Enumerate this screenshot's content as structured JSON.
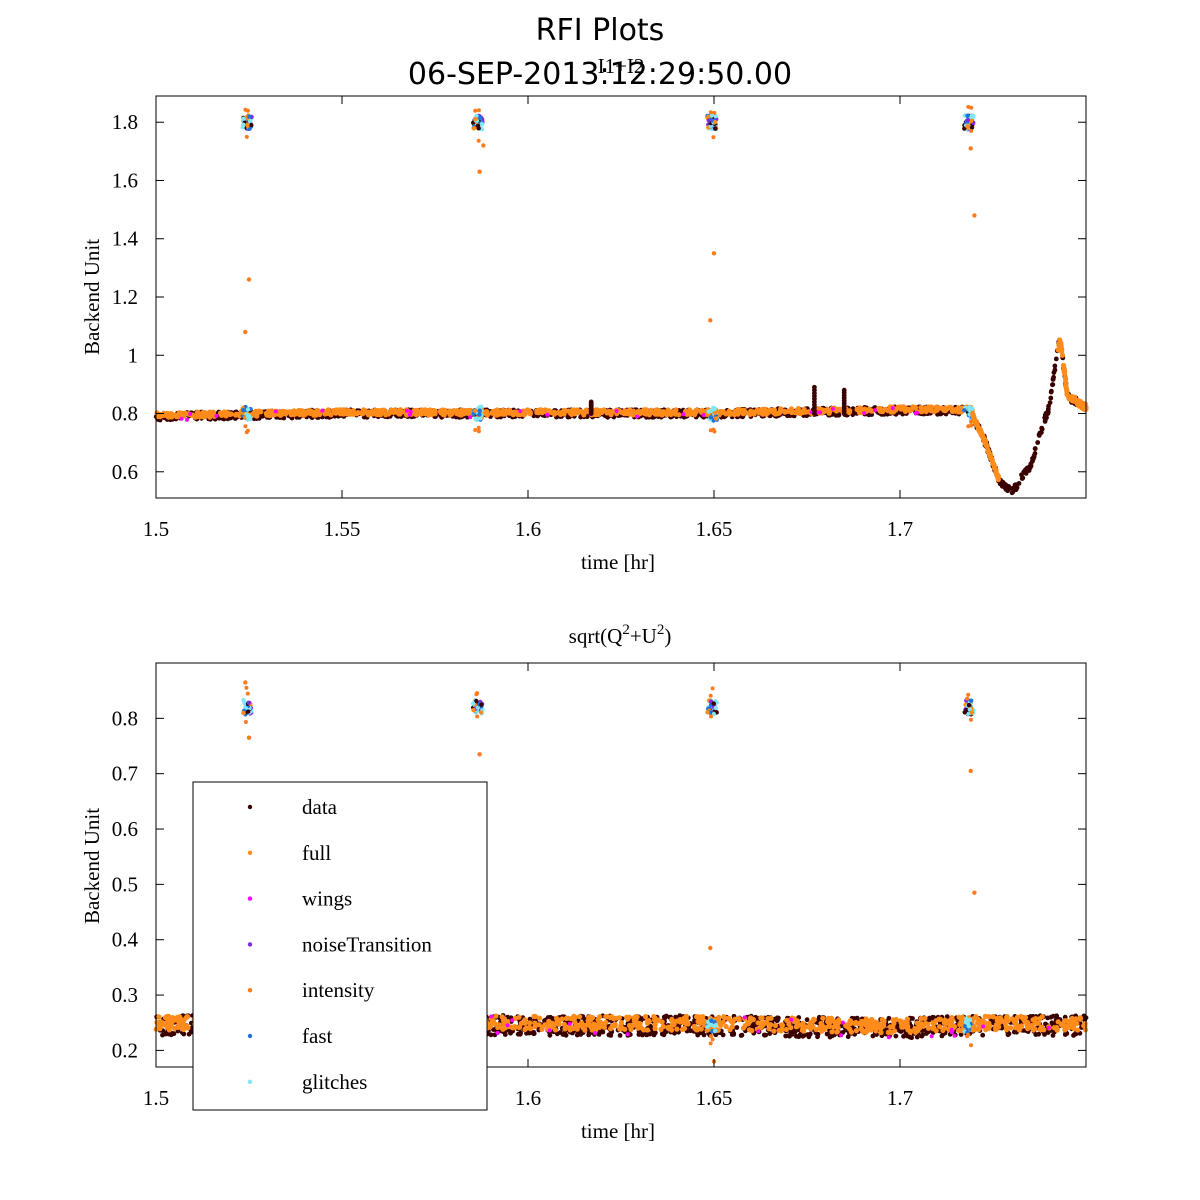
{
  "figure": {
    "title_line1": "RFI Plots",
    "title_line2": "06-SEP-2013:12:29:50.00"
  },
  "colors": {
    "data": "#3a0000",
    "full": "#ff8c1a",
    "wings": "#ff00ff",
    "noiseTransition": "#7b2ee0",
    "intensity": "#ff7b1c",
    "fast": "#1e73d8",
    "glitches": "#7fe7f5"
  },
  "legend": {
    "placement": "lower-left of bottom panel",
    "entries": [
      {
        "label": "data",
        "color": "#3a0000"
      },
      {
        "label": "full",
        "color": "#ff8c1a"
      },
      {
        "label": "wings",
        "color": "#ff00ff"
      },
      {
        "label": "noiseTransition",
        "color": "#7b2ee0"
      },
      {
        "label": "intensity",
        "color": "#ff7b1c"
      },
      {
        "label": "fast",
        "color": "#1e73d8"
      },
      {
        "label": "glitches",
        "color": "#7fe7f5"
      }
    ]
  },
  "chart_data": [
    {
      "type": "scatter",
      "title": "I1+I2",
      "xlabel": "time [hr]",
      "ylabel": "Backend Unit",
      "xlim": [
        1.5,
        1.75
      ],
      "ylim": [
        0.51,
        1.89
      ],
      "xticks": [
        1.5,
        1.55,
        1.6,
        1.65,
        1.7
      ],
      "xtick_labels": [
        "1.5",
        "1.55",
        "1.6",
        "1.65",
        "1.7"
      ],
      "yticks": [
        0.6,
        0.8,
        1.0,
        1.2,
        1.4,
        1.6,
        1.8
      ],
      "ytick_labels": [
        "0.6",
        "0.8",
        "1",
        "1.2",
        "1.4",
        "1.6",
        "1.8"
      ],
      "grid": false,
      "baseline": 0.8,
      "noise_spike_times": [
        1.5245,
        1.5865,
        1.6495,
        1.7185
      ],
      "noise_spike_level": 1.8,
      "series": [
        {
          "name": "data",
          "shape": "band around baseline, then dip and rise",
          "x": [
            1.5,
            1.55,
            1.6,
            1.65,
            1.7,
            1.719,
            1.723,
            1.727,
            1.73,
            1.735,
            1.74,
            1.743,
            1.745,
            1.75
          ],
          "y": [
            0.79,
            0.8,
            0.8,
            0.8,
            0.81,
            0.81,
            0.7,
            0.56,
            0.53,
            0.62,
            0.82,
            1.06,
            0.86,
            0.82
          ]
        },
        {
          "name": "intensity",
          "x": [
            1.524,
            1.525,
            1.587,
            1.588,
            1.649,
            1.65,
            1.719,
            1.72
          ],
          "y": [
            1.08,
            1.26,
            1.63,
            1.72,
            1.12,
            1.35,
            1.71,
            1.48
          ]
        }
      ],
      "features": [
        {
          "x": 1.677,
          "y": 0.89
        },
        {
          "x": 1.685,
          "y": 0.88
        },
        {
          "x": 1.617,
          "y": 0.84
        }
      ]
    },
    {
      "type": "scatter",
      "title": "sqrt(Q^2+U^2)",
      "title_base": "sqrt(Q",
      "title_sup1": "2",
      "title_mid": "+U",
      "title_sup2": "2",
      "title_end": ")",
      "xlabel": "time [hr]",
      "ylabel": "Backend Unit",
      "xlim": [
        1.5,
        1.75
      ],
      "ylim": [
        0.17,
        0.9
      ],
      "xticks": [
        1.5,
        1.6,
        1.65,
        1.7
      ],
      "xtick_labels": [
        "1.5",
        "1.6",
        "1.65",
        "1.7"
      ],
      "yticks": [
        0.2,
        0.3,
        0.4,
        0.5,
        0.6,
        0.7,
        0.8
      ],
      "ytick_labels": [
        "0.2",
        "0.3",
        "0.4",
        "0.5",
        "0.6",
        "0.7",
        "0.8"
      ],
      "grid": false,
      "baseline": 0.245,
      "noise_spike_times": [
        1.5245,
        1.5865,
        1.6495,
        1.7185
      ],
      "noise_spike_level": 0.82,
      "series": [
        {
          "name": "data",
          "shape": "band around baseline",
          "x": [
            1.5,
            1.55,
            1.6,
            1.65,
            1.7,
            1.72,
            1.75
          ],
          "y": [
            0.245,
            0.25,
            0.245,
            0.245,
            0.24,
            0.245,
            0.245
          ]
        },
        {
          "name": "intensity",
          "x": [
            1.524,
            1.525,
            1.587,
            1.649,
            1.65,
            1.719,
            1.72
          ],
          "y": [
            0.865,
            0.765,
            0.735,
            0.385,
            0.18,
            0.705,
            0.485
          ]
        }
      ]
    }
  ]
}
